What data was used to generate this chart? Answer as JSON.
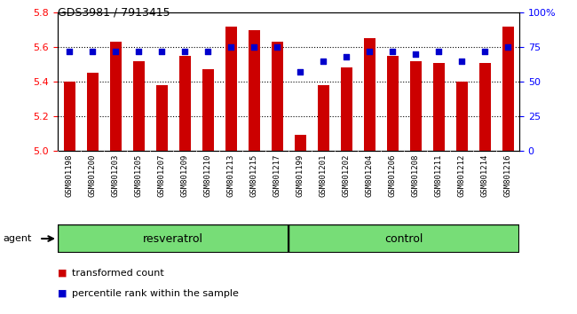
{
  "title": "GDS3981 / 7913415",
  "samples": [
    "GSM801198",
    "GSM801200",
    "GSM801203",
    "GSM801205",
    "GSM801207",
    "GSM801209",
    "GSM801210",
    "GSM801213",
    "GSM801215",
    "GSM801217",
    "GSM801199",
    "GSM801201",
    "GSM801202",
    "GSM801204",
    "GSM801206",
    "GSM801208",
    "GSM801211",
    "GSM801212",
    "GSM801214",
    "GSM801216"
  ],
  "bar_values": [
    5.4,
    5.45,
    5.63,
    5.52,
    5.38,
    5.55,
    5.47,
    5.72,
    5.7,
    5.63,
    5.09,
    5.38,
    5.48,
    5.65,
    5.55,
    5.52,
    5.51,
    5.4,
    5.51,
    5.72
  ],
  "percentile_values": [
    72,
    72,
    72,
    72,
    72,
    72,
    72,
    75,
    75,
    75,
    57,
    65,
    68,
    72,
    72,
    70,
    72,
    65,
    72,
    75
  ],
  "bar_color": "#cc0000",
  "percentile_color": "#0000cc",
  "ylim_left": [
    5.0,
    5.8
  ],
  "ylim_right": [
    0,
    100
  ],
  "yticks_left": [
    5.0,
    5.2,
    5.4,
    5.6,
    5.8
  ],
  "yticks_right": [
    0,
    25,
    50,
    75,
    100
  ],
  "ytick_labels_right": [
    "0",
    "25",
    "50",
    "75",
    "100%"
  ],
  "grid_values": [
    5.2,
    5.4,
    5.6
  ],
  "resveratrol_count": 10,
  "control_count": 10,
  "resveratrol_label": "resveratrol",
  "control_label": "control",
  "agent_label": "agent",
  "legend_bar_label": "transformed count",
  "legend_pct_label": "percentile rank within the sample",
  "group_color": "#77dd77",
  "xtick_bg_color": "#cccccc",
  "bar_width": 0.5,
  "fig_width": 6.5,
  "fig_height": 3.54
}
